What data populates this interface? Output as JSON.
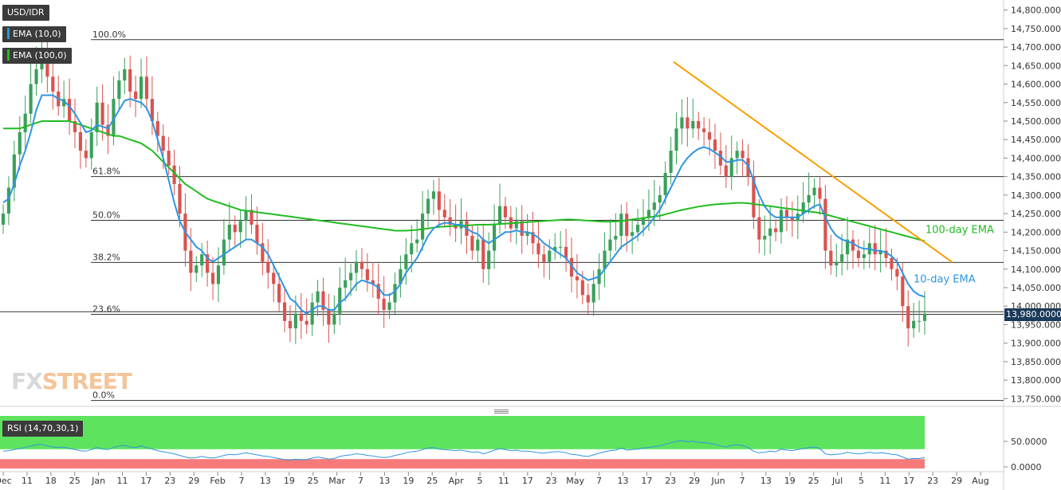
{
  "header": {
    "symbol": "USD/IDR",
    "ema10_tag": "EMA (10,0)",
    "ema100_tag": "EMA (100,0)",
    "rsi_tag": "RSI (14,70,30,1)",
    "last_price_label": "13,980.0000"
  },
  "colors": {
    "bull": "#3aa05a",
    "bear": "#d9534f",
    "ema10": "#2f95e0",
    "ema100": "#22bb22",
    "trendline": "#f5a000",
    "tag_bg": "#3b3b3b",
    "rsi_over": "#5ee35e",
    "rsi_under": "#f77a7a"
  },
  "logo": {
    "text_fx": "FX",
    "text_street": "STREET"
  },
  "chart_data": {
    "type": "candlestick",
    "title": "USD/IDR",
    "ylim": [
      13740,
      14810
    ],
    "y_ticks": [
      "14,800.0000",
      "14,750.0000",
      "14,700.0000",
      "14,650.0000",
      "14,600.0000",
      "14,550.0000",
      "14,500.0000",
      "14,450.0000",
      "14,400.0000",
      "14,350.0000",
      "14,300.0000",
      "14,250.0000",
      "14,200.0000",
      "14,150.0000",
      "14,100.0000",
      "14,050.0000",
      "14,000.0000",
      "13,950.0000",
      "13,900.0000",
      "13,850.0000",
      "13,800.0000",
      "13,750.0000"
    ],
    "x_ticks": [
      "Dec",
      "11",
      "18",
      "25",
      "Jan",
      "11",
      "17",
      "23",
      "29",
      "Feb",
      "7",
      "13",
      "19",
      "25",
      "Mar",
      "7",
      "13",
      "19",
      "25",
      "Apr",
      "5",
      "11",
      "17",
      "23",
      "May",
      "7",
      "13",
      "17",
      "23",
      "29",
      "Jun",
      "7",
      "13",
      "19",
      "25",
      "Jul",
      "5",
      "11",
      "17",
      "23",
      "29",
      "Aug"
    ],
    "closes": [
      14250,
      14320,
      14410,
      14470,
      14520,
      14600,
      14640,
      14690,
      14620,
      14580,
      14540,
      14560,
      14500,
      14470,
      14420,
      14400,
      14470,
      14550,
      14490,
      14460,
      14560,
      14610,
      14640,
      14580,
      14560,
      14620,
      14560,
      14500,
      14460,
      14420,
      14380,
      14330,
      14250,
      14150,
      14090,
      14110,
      14140,
      14090,
      14060,
      14110,
      14180,
      14220,
      14200,
      14230,
      14260,
      14220,
      14170,
      14120,
      14090,
      14060,
      14010,
      13960,
      13940,
      13980,
      13960,
      13950,
      14010,
      14040,
      13990,
      13950,
      13980,
      14050,
      14070,
      14090,
      14120,
      14100,
      14070,
      14060,
      14020,
      13990,
      14010,
      14060,
      14100,
      14140,
      14170,
      14180,
      14250,
      14290,
      14310,
      14260,
      14240,
      14220,
      14210,
      14230,
      14190,
      14150,
      14180,
      14100,
      14150,
      14220,
      14270,
      14240,
      14210,
      14230,
      14190,
      14200,
      14170,
      14140,
      14120,
      14150,
      14160,
      14160,
      14130,
      14080,
      14070,
      14030,
      14010,
      14060,
      14100,
      14150,
      14180,
      14190,
      14250,
      14190,
      14200,
      14220,
      14240,
      14260,
      14280,
      14300,
      14360,
      14420,
      14480,
      14510,
      14480,
      14500,
      14480,
      14470,
      14450,
      14420,
      14380,
      14350,
      14400,
      14420,
      14400,
      14350,
      14240,
      14180,
      14190,
      14210,
      14200,
      14260,
      14240,
      14230,
      14250,
      14280,
      14300,
      14320,
      14290,
      14150,
      14110,
      14120,
      14140,
      14180,
      14150,
      14130,
      14140,
      14170,
      14140,
      14150,
      14130,
      14100,
      14080,
      14000,
      13940,
      13960,
      13960,
      13980
    ],
    "ema10": [
      14280,
      14290,
      14330,
      14380,
      14420,
      14470,
      14530,
      14570,
      14570,
      14570,
      14560,
      14555,
      14540,
      14520,
      14495,
      14470,
      14475,
      14490,
      14485,
      14480,
      14505,
      14530,
      14555,
      14560,
      14555,
      14550,
      14535,
      14500,
      14450,
      14400,
      14340,
      14280,
      14230,
      14200,
      14180,
      14160,
      14150,
      14130,
      14120,
      14130,
      14140,
      14150,
      14160,
      14170,
      14180,
      14180,
      14170,
      14160,
      14140,
      14110,
      14080,
      14050,
      14020,
      14010,
      13990,
      13980,
      13990,
      14000,
      14000,
      13990,
      13990,
      14010,
      14020,
      14040,
      14060,
      14070,
      14065,
      14060,
      14050,
      14030,
      14030,
      14040,
      14060,
      14090,
      14110,
      14130,
      14160,
      14190,
      14210,
      14220,
      14225,
      14225,
      14220,
      14220,
      14210,
      14200,
      14195,
      14180,
      14170,
      14180,
      14190,
      14200,
      14200,
      14205,
      14200,
      14200,
      14195,
      14185,
      14170,
      14160,
      14150,
      14140,
      14130,
      14110,
      14090,
      14080,
      14070,
      14075,
      14080,
      14100,
      14120,
      14140,
      14160,
      14170,
      14180,
      14190,
      14205,
      14220,
      14240,
      14260,
      14290,
      14320,
      14350,
      14380,
      14400,
      14415,
      14425,
      14430,
      14425,
      14415,
      14405,
      14390,
      14390,
      14395,
      14395,
      14380,
      14340,
      14300,
      14270,
      14250,
      14240,
      14240,
      14240,
      14240,
      14240,
      14250,
      14260,
      14270,
      14275,
      14240,
      14210,
      14190,
      14180,
      14175,
      14170,
      14160,
      14155,
      14155,
      14150,
      14150,
      14145,
      14135,
      14120,
      14090,
      14060,
      14040,
      14030,
      14025
    ],
    "ema100": [
      14480,
      14480,
      14480,
      14480,
      14485,
      14490,
      14495,
      14500,
      14500,
      14500,
      14500,
      14500,
      14500,
      14495,
      14490,
      14485,
      14480,
      14475,
      14470,
      14465,
      14460,
      14460,
      14455,
      14450,
      14445,
      14440,
      14430,
      14420,
      14405,
      14390,
      14375,
      14360,
      14345,
      14330,
      14320,
      14310,
      14300,
      14290,
      14285,
      14280,
      14275,
      14270,
      14265,
      14260,
      14258,
      14256,
      14254,
      14252,
      14250,
      14248,
      14246,
      14244,
      14242,
      14240,
      14238,
      14236,
      14234,
      14232,
      14230,
      14228,
      14226,
      14224,
      14222,
      14220,
      14218,
      14216,
      14214,
      14212,
      14210,
      14208,
      14206,
      14204,
      14204,
      14204,
      14205,
      14206,
      14208,
      14210,
      14212,
      14214,
      14215,
      14216,
      14217,
      14218,
      14218,
      14219,
      14220,
      14220,
      14220,
      14221,
      14222,
      14223,
      14224,
      14225,
      14226,
      14227,
      14228,
      14229,
      14230,
      14231,
      14232,
      14233,
      14234,
      14234,
      14233,
      14232,
      14231,
      14230,
      14229,
      14228,
      14228,
      14229,
      14230,
      14232,
      14234,
      14236,
      14238,
      14240,
      14242,
      14244,
      14248,
      14252,
      14256,
      14260,
      14263,
      14266,
      14269,
      14271,
      14273,
      14275,
      14276,
      14277,
      14278,
      14279,
      14279,
      14278,
      14276,
      14274,
      14272,
      14270,
      14268,
      14266,
      14264,
      14262,
      14260,
      14258,
      14256,
      14254,
      14252,
      14248,
      14244,
      14240,
      14236,
      14232,
      14228,
      14224,
      14220,
      14216,
      14212,
      14208,
      14204,
      14200,
      14196,
      14192,
      14188,
      14184,
      14180,
      14176
    ],
    "trendline": {
      "label": "",
      "points": [
        [
          14660,
          "May-16"
        ],
        [
          14120,
          "Jul-22"
        ]
      ]
    },
    "fibonacci": [
      {
        "level": "100.0%",
        "price": 14720
      },
      {
        "level": "61.8%",
        "price": 14350
      },
      {
        "level": "50.0%",
        "price": 14232
      },
      {
        "level": "38.2%",
        "price": 14118
      },
      {
        "level": "23.6%",
        "price": 13978
      },
      {
        "level": "0.0%",
        "price": 13745
      }
    ],
    "annotations": [
      "100-day EMA",
      "10-day EMA"
    ],
    "rsi": {
      "levels": [
        "50.0000",
        "0.0000"
      ],
      "overbought": 70,
      "oversold": 30,
      "values": [
        45,
        46,
        48,
        50,
        52,
        55,
        57,
        58,
        55,
        53,
        52,
        53,
        50,
        48,
        46,
        45,
        48,
        52,
        49,
        48,
        52,
        55,
        56,
        53,
        52,
        55,
        52,
        49,
        46,
        44,
        42,
        40,
        37,
        34,
        32,
        33,
        35,
        33,
        32,
        34,
        37,
        39,
        38,
        40,
        42,
        40,
        38,
        36,
        35,
        33,
        31,
        29,
        28,
        30,
        29,
        29,
        32,
        34,
        32,
        30,
        31,
        35,
        37,
        38,
        40,
        39,
        37,
        36,
        34,
        33,
        34,
        37,
        39,
        42,
        44,
        45,
        48,
        51,
        52,
        49,
        48,
        47,
        46,
        47,
        45,
        43,
        44,
        40,
        43,
        47,
        50,
        48,
        46,
        47,
        45,
        45,
        44,
        42,
        41,
        43,
        44,
        44,
        42,
        39,
        38,
        36,
        35,
        38,
        41,
        44,
        46,
        47,
        51,
        47,
        48,
        49,
        51,
        52,
        54,
        55,
        58,
        61,
        64,
        65,
        63,
        64,
        62,
        61,
        60,
        58,
        55,
        53,
        56,
        57,
        56,
        52,
        45,
        42,
        43,
        45,
        44,
        49,
        47,
        46,
        48,
        50,
        52,
        53,
        50,
        40,
        38,
        39,
        40,
        43,
        41,
        40,
        41,
        43,
        41,
        42,
        41,
        39,
        38,
        34,
        30,
        31,
        31,
        33
      ]
    }
  }
}
